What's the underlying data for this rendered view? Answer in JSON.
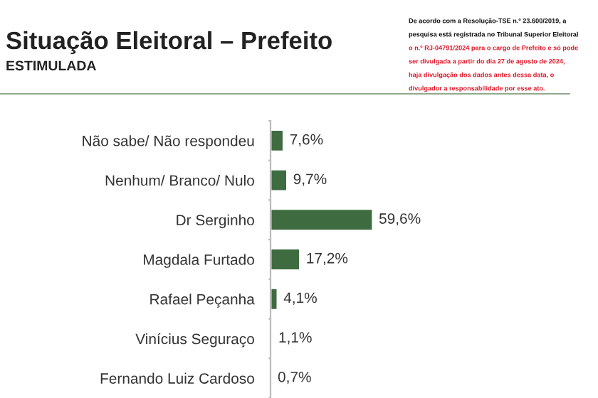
{
  "chart_data": {
    "type": "bar",
    "orientation": "horizontal",
    "title": "Situação Eleitoral – Prefeito",
    "subtitle": "ESTIMULADA",
    "categories": [
      "Não sabe/ Não respondeu",
      "Nenhum/ Branco/ Nulo",
      "Dr Serginho",
      "Magdala Furtado",
      "Rafael Peçanha",
      "Vinícius Seguraço",
      "Fernando Luiz Cardoso"
    ],
    "values": [
      7.6,
      9.7,
      59.6,
      17.2,
      4.1,
      1.1,
      0.7
    ],
    "value_labels": [
      "7,6%",
      "9,7%",
      "59,6%",
      "17,2%",
      "4,1%",
      "1,1%",
      "0,7%"
    ],
    "color": "#3e6b40",
    "annotations": [
      "De acordo com a Resolução-TSE n.º 23.600/2019, a",
      "pesquisa está registrada no Tribunal Superior Eleitoral",
      "o n.º RJ-04791/2024 para o cargo de Prefeito e só pode",
      "ser divulgada a partir do dia 27 de agosto de 2024,",
      "haja divulgação dos dados antes dessa data, o",
      "divulgador a responsabilidade por esse ato."
    ]
  }
}
